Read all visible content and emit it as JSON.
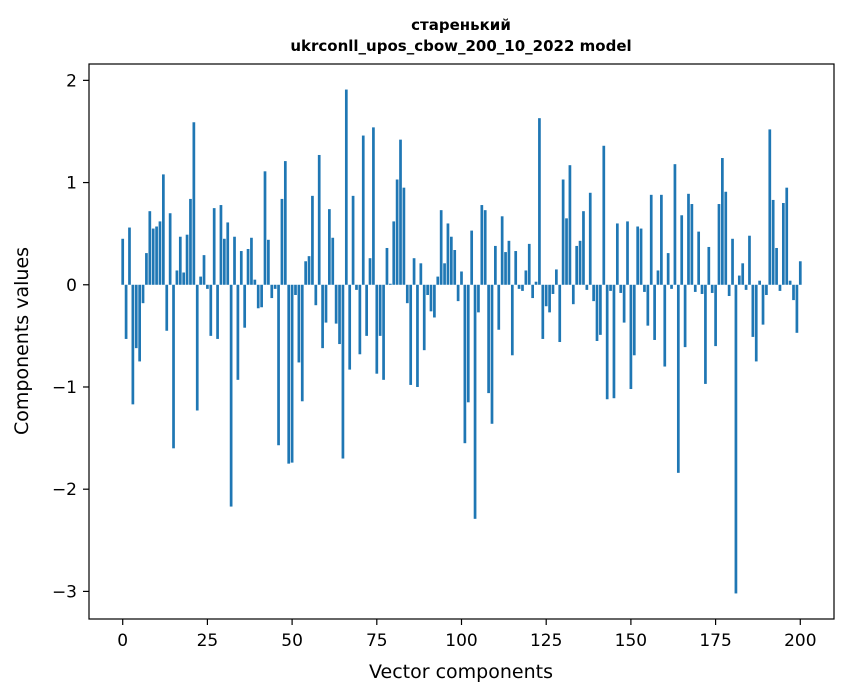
{
  "chart_data": {
    "type": "bar",
    "title": "стаpенький",
    "subtitle": "ukrconll_upos_cbow_200_10_2022 model",
    "xlabel": "Vector components",
    "ylabel": "Components values",
    "xlim": [
      -9.95,
      209.95
    ],
    "ylim": [
      -3.27,
      2.16
    ],
    "xticks": [
      0,
      25,
      50,
      75,
      100,
      125,
      150,
      175,
      200
    ],
    "xtick_labels": [
      "0",
      "25",
      "50",
      "75",
      "100",
      "125",
      "150",
      "175",
      "200"
    ],
    "yticks": [
      -3,
      -2,
      -1,
      0,
      1,
      2
    ],
    "ytick_labels": [
      "−3",
      "−2",
      "−1",
      "0",
      "1",
      "2"
    ],
    "bar_color": "#1f77b4",
    "grid": false,
    "x_start": 0,
    "values": [
      0.45,
      -0.53,
      0.56,
      -1.17,
      -0.62,
      -0.75,
      -0.18,
      0.31,
      0.72,
      0.55,
      0.57,
      0.62,
      1.08,
      -0.45,
      0.7,
      -1.6,
      0.14,
      0.47,
      0.12,
      0.49,
      0.84,
      1.59,
      -1.23,
      0.08,
      0.29,
      -0.04,
      -0.5,
      0.75,
      -0.53,
      0.78,
      0.45,
      0.61,
      -2.17,
      0.47,
      -0.93,
      0.33,
      -0.42,
      0.35,
      0.46,
      0.05,
      -0.23,
      -0.22,
      1.11,
      0.44,
      -0.13,
      -0.04,
      -1.57,
      0.84,
      1.21,
      -1.75,
      -1.74,
      -0.1,
      -0.76,
      -1.14,
      0.23,
      0.28,
      0.87,
      -0.2,
      1.27,
      -0.62,
      -0.37,
      0.74,
      0.46,
      -0.38,
      -0.58,
      -1.7,
      1.91,
      -0.83,
      0.87,
      -0.05,
      -0.68,
      1.46,
      -0.5,
      0.26,
      1.54,
      -0.87,
      -0.5,
      -0.93,
      0.36,
      0.01,
      0.62,
      1.03,
      1.42,
      0.95,
      -0.18,
      -0.98,
      0.26,
      -1.0,
      0.21,
      -0.64,
      -0.1,
      -0.26,
      -0.32,
      0.08,
      0.73,
      0.21,
      0.6,
      0.47,
      0.34,
      -0.16,
      0.13,
      -1.55,
      -1.15,
      0.53,
      -2.29,
      -0.27,
      0.78,
      0.73,
      -1.06,
      -1.36,
      0.38,
      -0.44,
      0.67,
      0.32,
      0.43,
      -0.69,
      0.33,
      -0.04,
      -0.06,
      0.14,
      0.4,
      -0.13,
      0.03,
      1.63,
      -0.53,
      -0.21,
      -0.27,
      -0.09,
      0.15,
      -0.56,
      1.03,
      0.65,
      1.17,
      -0.19,
      0.38,
      0.43,
      0.72,
      -0.05,
      0.9,
      -0.16,
      -0.55,
      -0.49,
      1.36,
      -1.12,
      -0.06,
      -1.11,
      0.6,
      -0.08,
      -0.37,
      0.62,
      -1.02,
      -0.69,
      0.57,
      0.55,
      -0.07,
      -0.4,
      0.88,
      -0.54,
      0.14,
      0.88,
      -0.8,
      0.31,
      -0.04,
      1.18,
      -1.84,
      0.68,
      -0.61,
      0.89,
      0.79,
      -0.07,
      0.52,
      -0.09,
      -0.97,
      0.37,
      -0.08,
      -0.6,
      0.79,
      1.24,
      0.91,
      -0.11,
      0.45,
      -3.02,
      0.09,
      0.21,
      -0.05,
      0.48,
      -0.51,
      -0.75,
      0.04,
      -0.39,
      -0.1,
      1.52,
      0.83,
      0.36,
      -0.06,
      0.8,
      0.95,
      0.04,
      -0.15,
      -0.47,
      0.23
    ]
  }
}
